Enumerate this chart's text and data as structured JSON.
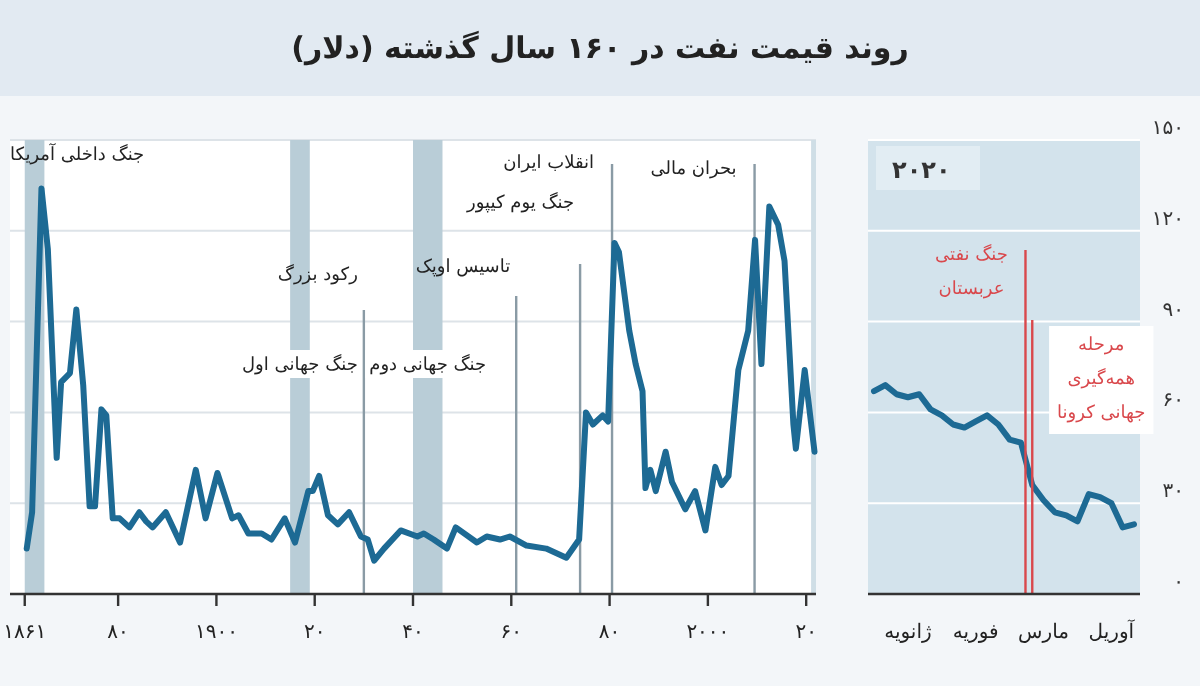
{
  "chart_data": [
    {
      "type": "line",
      "title": "روند قیمت نفت در ۱۶۰ سال گذشته (دلار)",
      "x": [
        1861.4,
        1862.5,
        1864.4,
        1865.7,
        1867.5,
        1868.4,
        1870.2,
        1871.5,
        1872.9,
        1874.2,
        1875.3,
        1876.6,
        1877.6,
        1878.9,
        1880.3,
        1882.3,
        1884.3,
        1885.7,
        1887,
        1889.7,
        1892.6,
        1895.8,
        1897.8,
        1900.2,
        1903.2,
        1904.5,
        1906.5,
        1909.2,
        1911.2,
        1913.9,
        1916,
        1918.7,
        1919.6,
        1920.9,
        1922.7,
        1924.7,
        1927,
        1929.4,
        1930.8,
        1932.1,
        1934.1,
        1937.5,
        1940.9,
        1942.2,
        1944.2,
        1946.9,
        1948.7,
        1953,
        1955,
        1957.7,
        1959.7,
        1963.1,
        1967.1,
        1971.2,
        1973.8,
        1975.2,
        1976.6,
        1978.6,
        1979.7,
        1981,
        1981.9,
        1984,
        1985.3,
        1986.7,
        1987.3,
        1988.3,
        1989.4,
        1991.4,
        1992.7,
        1995.4,
        1997.4,
        1999.5,
        2001.5,
        2002.8,
        2004.2,
        2006.2,
        2008.2,
        2009.6,
        2010.9,
        2012.5,
        2014.3,
        2015.6,
        2017.4,
        2017.9,
        2019.7,
        2021.7
      ],
      "series": [
        {
          "color": "#1d6a94",
          "values": [
            15,
            27,
            134,
            114,
            45,
            70,
            73,
            94,
            69,
            29,
            29,
            61,
            59,
            25,
            25,
            22,
            27,
            24,
            22,
            27,
            17,
            41,
            25,
            40,
            25,
            26,
            20,
            20,
            18,
            25,
            17,
            34,
            34,
            39,
            26,
            23,
            27,
            19,
            18,
            11,
            15,
            21,
            19,
            20,
            18,
            15,
            22,
            17,
            19,
            18,
            19,
            16,
            15,
            12,
            18,
            60,
            56,
            59,
            57,
            116,
            113,
            87,
            76,
            67,
            35,
            41,
            34,
            47,
            37,
            28,
            34,
            21,
            42,
            36,
            39,
            74,
            87,
            117,
            76,
            128,
            122,
            110,
            56,
            48,
            74,
            47
          ]
        }
      ],
      "xlim": [
        1858,
        2022
      ],
      "xticks": [
        {
          "value": 1861,
          "label": "۱۸۶۱"
        },
        {
          "value": 1880,
          "label": "۸۰"
        },
        {
          "value": 1900,
          "label": "۱۹۰۰"
        },
        {
          "value": 1920,
          "label": "۲۰"
        },
        {
          "value": 1940,
          "label": "۴۰"
        },
        {
          "value": 1960,
          "label": "۶۰"
        },
        {
          "value": 1980,
          "label": "۸۰"
        },
        {
          "value": 2000,
          "label": "۲۰۰۰"
        },
        {
          "value": 2020,
          "label": "۲۰"
        }
      ],
      "ylim": [
        0,
        150
      ],
      "yticks": [
        {
          "value": 0,
          "label": null
        },
        {
          "value": 30,
          "label": null
        },
        {
          "value": 60,
          "label": null
        },
        {
          "value": 90,
          "label": null
        },
        {
          "value": 120,
          "label": null
        },
        {
          "value": 150,
          "label": null
        }
      ],
      "tick_labels": "x",
      "grid": "y",
      "bands": [
        {
          "axis": "x",
          "from": 1861,
          "to": 1865,
          "label": "جنگ داخلی آمریکا",
          "color": "#b9cdd7"
        },
        {
          "axis": "x",
          "from": 1915,
          "to": 1919,
          "label": "جنگ جهانی اول",
          "color": "#b9cdd7"
        },
        {
          "axis": "x",
          "from": 1940,
          "to": 1946,
          "label": "جنگ جهانی دوم",
          "color": "#b9cdd7"
        },
        {
          "axis": "x",
          "from": 2021,
          "to": 2022,
          "color": "#cfdee6"
        }
      ],
      "ref_lines": [
        {
          "axis": "x",
          "value": 1930,
          "label": "رکود بزرگ",
          "color": "#8a9ba5"
        },
        {
          "axis": "x",
          "value": 1961,
          "label": "تاسیس اوپک",
          "color": "#8a9ba5"
        },
        {
          "axis": "x",
          "value": 1974,
          "label": "جنگ یوم کیپور",
          "color": "#8a9ba5"
        },
        {
          "axis": "x",
          "value": 1980.5,
          "label": "انقلاب ایران",
          "color": "#8a9ba5"
        },
        {
          "axis": "x",
          "value": 2009.5,
          "label": "بحران مالی",
          "color": "#8a9ba5"
        }
      ]
    },
    {
      "type": "line",
      "categories": [
        null,
        null,
        null,
        "ژانویه",
        null,
        null,
        null,
        null,
        null,
        "فوریه",
        null,
        null,
        null,
        null,
        null,
        "مارس",
        null,
        null,
        null,
        null,
        null,
        "آوریل",
        null,
        null
      ],
      "series": [
        {
          "color": "#1d6a94",
          "values": [
            67,
            69,
            66,
            65,
            66,
            61,
            59,
            56,
            55,
            57,
            59,
            56,
            51,
            50,
            36,
            31,
            27,
            26,
            24,
            33,
            32,
            30,
            22,
            23
          ]
        }
      ],
      "ylim": [
        0,
        150
      ],
      "yticks": [
        {
          "value": 0,
          "label": "۰"
        },
        {
          "value": 30,
          "label": "۳۰"
        },
        {
          "value": 60,
          "label": "۶۰"
        },
        {
          "value": 90,
          "label": "۹۰"
        },
        {
          "value": 120,
          "label": "۱۲۰"
        },
        {
          "value": 150,
          "label": "۱۵۰"
        }
      ],
      "grid": "y",
      "annotations": [
        "۲۰۲۰",
        "جنگ نفتی عربستان",
        "مرحله همه‌گیری جهانی کرونا"
      ]
    }
  ]
}
